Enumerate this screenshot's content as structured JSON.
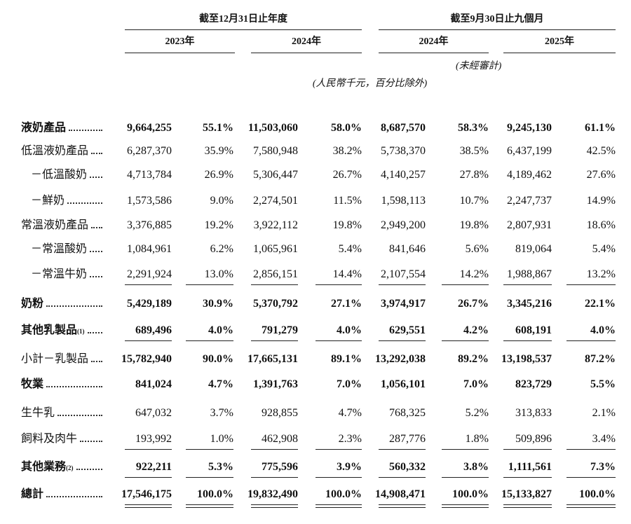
{
  "header": {
    "groups": [
      "截至12月31日止年度",
      "截至9月30日止九個月"
    ],
    "years": [
      "2023年",
      "2024年",
      "2024年",
      "2025年"
    ],
    "audit_note": "(未經審計)",
    "unit_note": "(人民幣千元，百分比除外)"
  },
  "table": {
    "rows": [
      {
        "label": "液奶產品",
        "bold": true,
        "cells": [
          "9,664,255",
          "55.1%",
          "11,503,060",
          "58.0%",
          "8,687,570",
          "58.3%",
          "9,245,130",
          "61.1%"
        ]
      },
      {
        "label": "低溫液奶產品",
        "cells": [
          "6,287,370",
          "35.9%",
          "7,580,948",
          "38.2%",
          "5,738,370",
          "38.5%",
          "6,437,199",
          "42.5%"
        ]
      },
      {
        "label": "－低溫酸奶",
        "indent": true,
        "cells": [
          "4,713,784",
          "26.9%",
          "5,306,447",
          "26.7%",
          "4,140,257",
          "27.8%",
          "4,189,462",
          "27.6%"
        ]
      },
      {
        "label": "－鮮奶",
        "indent": true,
        "cells": [
          "1,573,586",
          "9.0%",
          "2,274,501",
          "11.5%",
          "1,598,113",
          "10.7%",
          "2,247,737",
          "14.9%"
        ]
      },
      {
        "label": "常溫液奶產品",
        "cells": [
          "3,376,885",
          "19.2%",
          "3,922,112",
          "19.8%",
          "2,949,200",
          "19.8%",
          "2,807,931",
          "18.6%"
        ]
      },
      {
        "label": "－常溫酸奶",
        "indent": true,
        "cells": [
          "1,084,961",
          "6.2%",
          "1,065,961",
          "5.4%",
          "841,646",
          "5.6%",
          "819,064",
          "5.4%"
        ]
      },
      {
        "label": "－常溫牛奶",
        "indent": true,
        "rule": "single",
        "cells": [
          "2,291,924",
          "13.0%",
          "2,856,151",
          "14.4%",
          "2,107,554",
          "14.2%",
          "1,988,867",
          "13.2%"
        ]
      },
      {
        "label": "奶粉",
        "bold": true,
        "cells": [
          "5,429,189",
          "30.9%",
          "5,370,792",
          "27.1%",
          "3,974,917",
          "26.7%",
          "3,345,216",
          "22.1%"
        ]
      },
      {
        "label": "其他乳製品",
        "note": "(1)",
        "bold": true,
        "rule": "single",
        "cells": [
          "689,496",
          "4.0%",
          "791,279",
          "4.0%",
          "629,551",
          "4.2%",
          "608,191",
          "4.0%"
        ]
      },
      {
        "label": "小計－乳製品",
        "bold": true,
        "cells": [
          "15,782,940",
          "90.0%",
          "17,665,131",
          "89.1%",
          "13,292,038",
          "89.2%",
          "13,198,537",
          "87.2%"
        ]
      },
      {
        "label": "牧業",
        "bold": true,
        "cells": [
          "841,024",
          "4.7%",
          "1,391,763",
          "7.0%",
          "1,056,101",
          "7.0%",
          "823,729",
          "5.5%"
        ]
      },
      {
        "label": "生牛乳",
        "cells": [
          "647,032",
          "3.7%",
          "928,855",
          "4.7%",
          "768,325",
          "5.2%",
          "313,833",
          "2.1%"
        ]
      },
      {
        "label": "飼料及肉牛",
        "rule": "single",
        "cells": [
          "193,992",
          "1.0%",
          "462,908",
          "2.3%",
          "287,776",
          "1.8%",
          "509,896",
          "3.4%"
        ]
      },
      {
        "label": "其他業務",
        "note": "(2)",
        "bold": true,
        "rule": "single",
        "cells": [
          "922,211",
          "5.3%",
          "775,596",
          "3.9%",
          "560,332",
          "3.8%",
          "1,111,561",
          "7.3%"
        ]
      },
      {
        "label": "總計",
        "bold": true,
        "rule": "double",
        "cells": [
          "17,546,175",
          "100.0%",
          "19,832,490",
          "100.0%",
          "14,908,471",
          "100.0%",
          "15,133,827",
          "100.0%"
        ]
      }
    ]
  }
}
